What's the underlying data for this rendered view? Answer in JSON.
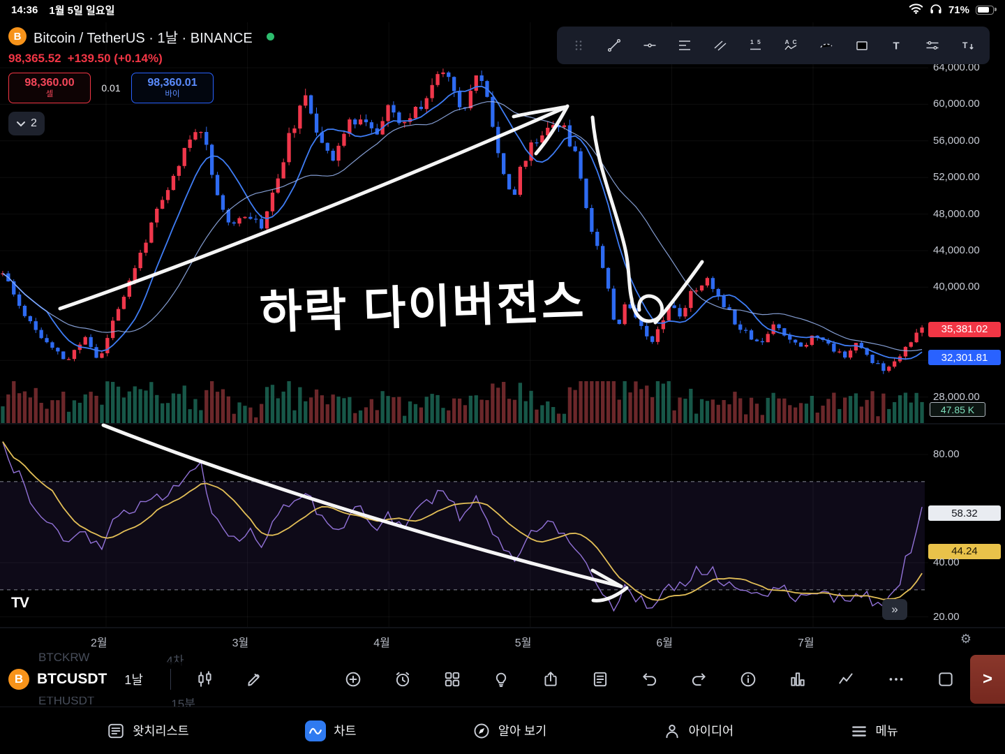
{
  "colors": {
    "up": "#f0374b",
    "down": "#2e6bf2",
    "vol_up": "rgba(42,158,131,0.55)",
    "vol_down": "rgba(214,78,83,0.5)",
    "ma": "#3f7df5",
    "ma2": "#9bb8f7",
    "rsi": "#9272d8",
    "rsi_ma": "#e3bf57",
    "band": "rgba(118,80,200,0.12)",
    "accent_red": "#f23645",
    "accent_blue": "#2962ff"
  },
  "glyphs": {
    "double_chevron": "»",
    "chevron_right": ">",
    "gear": "⚙",
    "fx": "ƒx",
    "more_dots": "⋯"
  },
  "status_bar": {
    "time": "14:36",
    "date": "1월 5일 일요일",
    "battery": "71%"
  },
  "header": {
    "title": "Bitcoin / TetherUS · 1날 · BINANCE",
    "price": "98,365.52",
    "change": "+139.50 (+0.14%)",
    "sell_price": "98,360.00",
    "sell_label": "셀",
    "spread": "0.01",
    "buy_price": "98,360.01",
    "buy_label": "바이",
    "layers_count": "2",
    "coin_letter": "B"
  },
  "drawing_toolbar": {
    "tools": [
      "drag-handle",
      "trend-line",
      "horizontal-line",
      "fib-retracement",
      "parallel-channel",
      "forecast",
      "xabcd-pattern",
      "brush",
      "rectangle",
      "text",
      "measure",
      "text-note"
    ]
  },
  "price_axis": {
    "last_price_label": "35,381.02",
    "secondary_price_label": "32,301.81",
    "volume_label": "47.85 K"
  },
  "indicator_axis": {
    "value_label": "58.32",
    "ma_label": "44.24"
  },
  "annotations": {
    "divergence_text": "하락 다이버전스"
  },
  "chart_footer": {
    "logo": "TV"
  },
  "background_watchlist": [
    {
      "symbol": "BTCKRW",
      "interval": "4차"
    },
    {
      "symbol": "ETHUSDT",
      "interval": "15분"
    }
  ],
  "bottom_toolbar": {
    "symbol": "BTCUSDT",
    "interval": "1날",
    "coin_letter": "B",
    "icons": [
      "candlestick",
      "draw",
      "indicators",
      "compare-add",
      "alert",
      "layout-grid",
      "lightbulb",
      "share",
      "notes",
      "undo",
      "redo",
      "info",
      "columns",
      "zigzag",
      "more",
      "fullscreen"
    ]
  },
  "tab_bar": [
    {
      "label": "왓치리스트",
      "icon": "watchlist-icon"
    },
    {
      "label": "차트",
      "icon": "chart-icon"
    },
    {
      "label": "알아 보기",
      "icon": "explore-icon"
    },
    {
      "label": "아이디어",
      "icon": "ideas-icon"
    },
    {
      "label": "메뉴",
      "icon": "menu-icon"
    }
  ],
  "chart_data": {
    "type": "candlestick",
    "symbol": "BTCUSDT",
    "exchange": "BINANCE",
    "interval": "1날",
    "bars": 168,
    "seed": 11,
    "price_ticks": [
      64000,
      60000,
      56000,
      52000,
      48000,
      44000,
      40000,
      28000
    ],
    "grid_levels": [
      64000,
      60000,
      56000,
      52000,
      48000,
      44000,
      40000,
      36000,
      32000,
      28000
    ],
    "last_price": 35381.02,
    "secondary_price": 32301.81,
    "volume_readout": "47.85 K",
    "months": [
      "2월",
      "3월",
      "4월",
      "5월",
      "6월",
      "7월"
    ],
    "price_anchors": [
      [
        0,
        41500
      ],
      [
        0.015,
        38500
      ],
      [
        0.03,
        36200
      ],
      [
        0.05,
        33500
      ],
      [
        0.07,
        31900
      ],
      [
        0.09,
        34600
      ],
      [
        0.105,
        31800
      ],
      [
        0.12,
        36500
      ],
      [
        0.14,
        41000
      ],
      [
        0.16,
        46500
      ],
      [
        0.18,
        50500
      ],
      [
        0.2,
        55500
      ],
      [
        0.215,
        57800
      ],
      [
        0.225,
        54000
      ],
      [
        0.235,
        49500
      ],
      [
        0.25,
        46200
      ],
      [
        0.265,
        48500
      ],
      [
        0.28,
        46500
      ],
      [
        0.295,
        50500
      ],
      [
        0.315,
        57500
      ],
      [
        0.33,
        60500
      ],
      [
        0.345,
        56500
      ],
      [
        0.36,
        54200
      ],
      [
        0.375,
        57500
      ],
      [
        0.39,
        59000
      ],
      [
        0.405,
        56500
      ],
      [
        0.42,
        59500
      ],
      [
        0.435,
        57500
      ],
      [
        0.45,
        59500
      ],
      [
        0.465,
        61500
      ],
      [
        0.478,
        64300
      ],
      [
        0.49,
        62000
      ],
      [
        0.5,
        59500
      ],
      [
        0.515,
        63000
      ],
      [
        0.525,
        61500
      ],
      [
        0.535,
        57000
      ],
      [
        0.545,
        52500
      ],
      [
        0.555,
        49500
      ],
      [
        0.565,
        53500
      ],
      [
        0.575,
        55500
      ],
      [
        0.585,
        56500
      ],
      [
        0.6,
        58500
      ],
      [
        0.61,
        57200
      ],
      [
        0.62,
        55500
      ],
      [
        0.63,
        51500
      ],
      [
        0.64,
        46500
      ],
      [
        0.65,
        43500
      ],
      [
        0.66,
        39500
      ],
      [
        0.668,
        34800
      ],
      [
        0.675,
        38500
      ],
      [
        0.685,
        37200
      ],
      [
        0.695,
        36000
      ],
      [
        0.705,
        34200
      ],
      [
        0.715,
        35600
      ],
      [
        0.725,
        38500
      ],
      [
        0.735,
        36600
      ],
      [
        0.75,
        39500
      ],
      [
        0.765,
        40800
      ],
      [
        0.78,
        39000
      ],
      [
        0.795,
        36500
      ],
      [
        0.81,
        35000
      ],
      [
        0.825,
        33800
      ],
      [
        0.84,
        36000
      ],
      [
        0.855,
        34500
      ],
      [
        0.87,
        33600
      ],
      [
        0.885,
        34800
      ],
      [
        0.9,
        33500
      ],
      [
        0.915,
        32600
      ],
      [
        0.93,
        33800
      ],
      [
        0.945,
        32000
      ],
      [
        0.958,
        31200
      ],
      [
        0.97,
        31900
      ],
      [
        0.982,
        33600
      ],
      [
        1,
        35400
      ]
    ],
    "rsi": {
      "value": 58.32,
      "ma_value": 44.24,
      "ticks": [
        80,
        40,
        20
      ],
      "bands": [
        70,
        30
      ],
      "anchors": [
        [
          0,
          83
        ],
        [
          0.03,
          64
        ],
        [
          0.05,
          55
        ],
        [
          0.07,
          47
        ],
        [
          0.09,
          52
        ],
        [
          0.105,
          45
        ],
        [
          0.12,
          54
        ],
        [
          0.14,
          59
        ],
        [
          0.16,
          62
        ],
        [
          0.18,
          66
        ],
        [
          0.2,
          72
        ],
        [
          0.215,
          76
        ],
        [
          0.225,
          63
        ],
        [
          0.235,
          54
        ],
        [
          0.25,
          47
        ],
        [
          0.265,
          52
        ],
        [
          0.28,
          46
        ],
        [
          0.295,
          55
        ],
        [
          0.315,
          63
        ],
        [
          0.33,
          68
        ],
        [
          0.345,
          57
        ],
        [
          0.36,
          51
        ],
        [
          0.375,
          56
        ],
        [
          0.39,
          60
        ],
        [
          0.405,
          53
        ],
        [
          0.42,
          58
        ],
        [
          0.435,
          54
        ],
        [
          0.45,
          58
        ],
        [
          0.465,
          62
        ],
        [
          0.478,
          67
        ],
        [
          0.49,
          61
        ],
        [
          0.5,
          56
        ],
        [
          0.515,
          63
        ],
        [
          0.525,
          59
        ],
        [
          0.535,
          51
        ],
        [
          0.545,
          44
        ],
        [
          0.555,
          40
        ],
        [
          0.565,
          47
        ],
        [
          0.575,
          50
        ],
        [
          0.585,
          52
        ],
        [
          0.6,
          55
        ],
        [
          0.61,
          51
        ],
        [
          0.62,
          48
        ],
        [
          0.63,
          42
        ],
        [
          0.64,
          36
        ],
        [
          0.65,
          32
        ],
        [
          0.66,
          27
        ],
        [
          0.668,
          22
        ],
        [
          0.675,
          31
        ],
        [
          0.685,
          28
        ],
        [
          0.695,
          27
        ],
        [
          0.705,
          24
        ],
        [
          0.715,
          28
        ],
        [
          0.725,
          34
        ],
        [
          0.735,
          30
        ],
        [
          0.75,
          36
        ],
        [
          0.765,
          38
        ],
        [
          0.78,
          34
        ],
        [
          0.795,
          30
        ],
        [
          0.81,
          28
        ],
        [
          0.825,
          26
        ],
        [
          0.84,
          32
        ],
        [
          0.855,
          29
        ],
        [
          0.87,
          27
        ],
        [
          0.885,
          31
        ],
        [
          0.9,
          28
        ],
        [
          0.915,
          26
        ],
        [
          0.93,
          30
        ],
        [
          0.945,
          26
        ],
        [
          0.958,
          24
        ],
        [
          0.97,
          28
        ],
        [
          0.982,
          40
        ],
        [
          1,
          58.3
        ]
      ]
    }
  }
}
